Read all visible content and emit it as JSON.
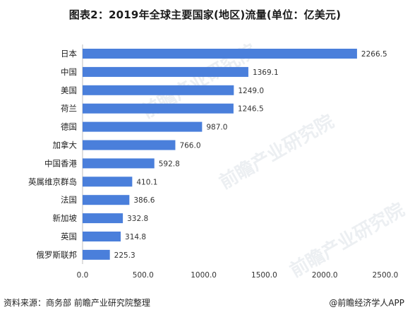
{
  "header": {
    "title": "图表2：2019年全球主要国家(地区)流量(单位：亿美元)"
  },
  "footer": {
    "source": "资料来源：商务部 前瞻产业研究院整理",
    "brand": "@前瞻经济学人APP"
  },
  "watermark": {
    "text": "前瞻产业研究院"
  },
  "colors": {
    "bar": "#4a7fdb",
    "axis": "#bfbfbf"
  },
  "chart_data": {
    "type": "bar",
    "orientation": "horizontal",
    "title": "图表2：2019年全球主要国家(地区)流量(单位：亿美元)",
    "categories": [
      "日本",
      "中国",
      "美国",
      "荷兰",
      "德国",
      "加拿大",
      "中国香港",
      "英属维京群岛",
      "法国",
      "新加坡",
      "英国",
      "俄罗斯联邦"
    ],
    "values": [
      2266.5,
      1369.1,
      1249.0,
      1246.5,
      987.0,
      766.0,
      592.8,
      410.1,
      386.6,
      332.8,
      314.8,
      225.3
    ],
    "value_labels": [
      "2266.5",
      "1369.1",
      "1249.0",
      "1246.5",
      "987.0",
      "766.0",
      "592.8",
      "410.1",
      "386.6",
      "332.8",
      "314.8",
      "225.3"
    ],
    "xlim": [
      0,
      2500
    ],
    "xticks": [
      0,
      500,
      1000,
      1500,
      2000,
      2500
    ],
    "xtick_labels": [
      "0.0",
      "500.0",
      "1000.0",
      "1500.0",
      "2000.0",
      "2500.0"
    ],
    "grid": false,
    "legend": "none"
  }
}
